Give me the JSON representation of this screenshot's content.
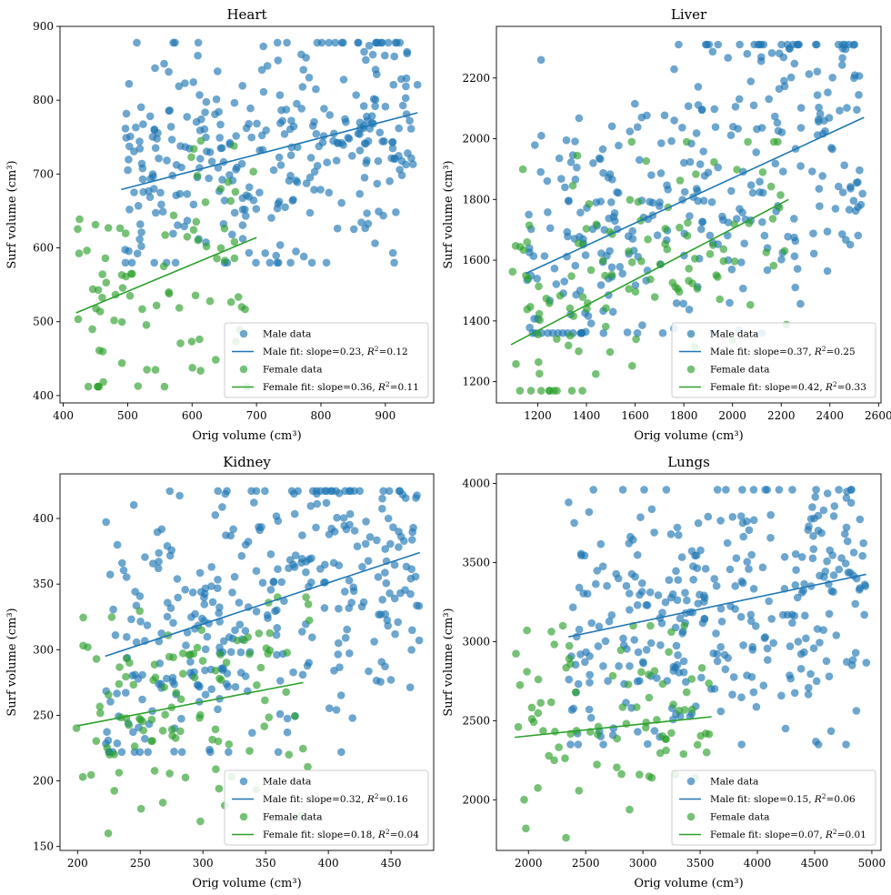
{
  "chart_data": [
    {
      "type": "scatter",
      "title": "Heart",
      "xlabel": "Orig volume (cm³)",
      "ylabel": "Surf volume (cm³)",
      "xlim": [
        395,
        975
      ],
      "ylim": [
        390,
        900
      ],
      "xticks": [
        400,
        500,
        600,
        700,
        800,
        900
      ],
      "yticks": [
        400,
        500,
        600,
        700,
        800,
        900
      ],
      "legend_position": "lower-right",
      "male": {
        "label": "Male data",
        "fit_label": "Male fit: slope=0.23, $R^2$=0.12",
        "slope": 0.23,
        "r2": 0.12,
        "x_range": [
          490,
          950
        ],
        "fit_start": 679,
        "fit_end": 783,
        "cluster": {
          "count": 330,
          "xmin": 490,
          "xmax": 950,
          "ymin": 580,
          "ymax": 878
        }
      },
      "female": {
        "label": "Female data",
        "fit_label": "Female fit: slope=0.36, $R^2$=0.11",
        "slope": 0.36,
        "r2": 0.11,
        "x_range": [
          420,
          700
        ],
        "fit_start": 512,
        "fit_end": 614,
        "cluster": {
          "count": 85,
          "xmin": 418,
          "xmax": 700,
          "ymin": 412,
          "ymax": 745
        }
      }
    },
    {
      "type": "scatter",
      "title": "Liver",
      "xlabel": "Orig volume (cm³)",
      "ylabel": "Surf volume (cm³)",
      "xlim": [
        1030,
        2610
      ],
      "ylim": [
        1130,
        2370
      ],
      "xticks": [
        1200,
        1400,
        1600,
        1800,
        2000,
        2200,
        2400,
        2600
      ],
      "yticks": [
        1200,
        1400,
        1600,
        1800,
        2000,
        2200
      ],
      "legend_position": "lower-right",
      "male": {
        "label": "Male data",
        "fit_label": "Male fit: slope=0.37, $R^2$=0.25",
        "slope": 0.37,
        "r2": 0.25,
        "x_range": [
          1150,
          2540
        ],
        "fit_start": 1556,
        "fit_end": 2070,
        "cluster": {
          "count": 340,
          "xmin": 1150,
          "xmax": 2540,
          "ymin": 1360,
          "ymax": 2310
        }
      },
      "female": {
        "label": "Female data",
        "fit_label": "Female fit: slope=0.42, $R^2$=0.33",
        "slope": 0.42,
        "r2": 0.33,
        "x_range": [
          1090,
          2230
        ],
        "fit_start": 1322,
        "fit_end": 1800,
        "cluster": {
          "count": 120,
          "xmin": 1080,
          "xmax": 2240,
          "ymin": 1170,
          "ymax": 1990
        }
      }
    },
    {
      "type": "scatter",
      "title": "Kidney",
      "xlabel": "Orig volume (cm³)",
      "ylabel": "Surf volume (cm³)",
      "xlim": [
        186,
        484
      ],
      "ylim": [
        147,
        434
      ],
      "xticks": [
        200,
        250,
        300,
        350,
        400,
        450
      ],
      "yticks": [
        150,
        200,
        250,
        300,
        350,
        400
      ],
      "legend_position": "lower-right",
      "male": {
        "label": "Male data",
        "fit_label": "Male fit: slope=0.32, $R^2$=0.16",
        "slope": 0.32,
        "r2": 0.16,
        "x_range": [
          222,
          473
        ],
        "fit_start": 295,
        "fit_end": 374,
        "cluster": {
          "count": 340,
          "xmin": 222,
          "xmax": 473,
          "ymin": 222,
          "ymax": 421
        }
      },
      "female": {
        "label": "Female data",
        "fit_label": "Female fit: slope=0.18, $R^2$=0.04",
        "slope": 0.18,
        "r2": 0.04,
        "x_range": [
          200,
          380
        ],
        "fit_start": 242,
        "fit_end": 275,
        "cluster": {
          "count": 110,
          "xmin": 199,
          "xmax": 385,
          "ymin": 160,
          "ymax": 340
        }
      }
    },
    {
      "type": "scatter",
      "title": "Lungs",
      "xlabel": "Orig volume (cm³)",
      "ylabel": "Surf volume (cm³)",
      "xlim": [
        1720,
        5080
      ],
      "ylim": [
        1680,
        4060
      ],
      "xticks": [
        2000,
        2500,
        3000,
        3500,
        4000,
        4500,
        5000
      ],
      "yticks": [
        2000,
        2500,
        3000,
        3500,
        4000
      ],
      "legend_position": "lower-right",
      "male": {
        "label": "Male data",
        "fit_label": "Male fit: slope=0.15, $R^2$=0.06",
        "slope": 0.15,
        "r2": 0.06,
        "x_range": [
          2350,
          4950
        ],
        "fit_start": 3030,
        "fit_end": 3425,
        "cluster": {
          "count": 330,
          "xmin": 2350,
          "xmax": 4960,
          "ymin": 2350,
          "ymax": 3960
        }
      },
      "female": {
        "label": "Female data",
        "fit_label": "Female fit: slope=0.07, $R^2$=0.01",
        "slope": 0.07,
        "r2": 0.01,
        "x_range": [
          1880,
          3600
        ],
        "fit_start": 2395,
        "fit_end": 2525,
        "cluster": {
          "count": 85,
          "xmin": 1880,
          "xmax": 3600,
          "ymin": 1760,
          "ymax": 3100
        }
      }
    }
  ],
  "colors": {
    "male": "#1f77b4",
    "female": "#2ca02c",
    "axes": "#000000",
    "legend_border": "#cccccc"
  }
}
